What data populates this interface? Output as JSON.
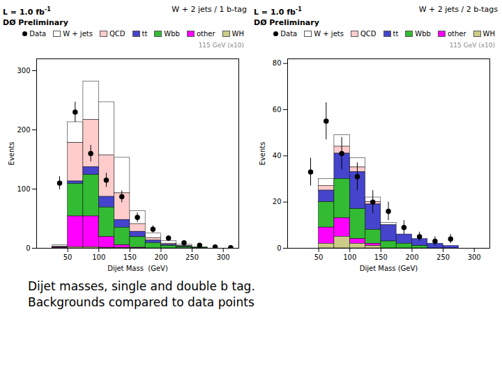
{
  "chart_data": [
    {
      "type": "bar",
      "stacked": true,
      "title": "W + 2 jets / 1 b-tag",
      "annotations": [
        "L = 1.0 fb",
        "-1",
        "DØ Preliminary",
        "115 GeV (x10)"
      ],
      "xlabel": "Dijet Mass  (GeV)",
      "ylabel": "Events",
      "xlim": [
        0,
        325
      ],
      "ylim": [
        0,
        320
      ],
      "xticks": [
        50,
        100,
        150,
        200,
        250,
        300
      ],
      "yticks": [
        0,
        100,
        200,
        300
      ],
      "bins": [
        25,
        50,
        75,
        100,
        125,
        150,
        175,
        200,
        225,
        250,
        275,
        300,
        325
      ],
      "legend": "upper right",
      "series": [
        {
          "name": "Data",
          "type": "scatter",
          "color": "black",
          "marker": "o",
          "x": [
            37,
            62,
            87,
            112,
            137,
            162,
            187,
            212,
            237,
            262,
            287,
            312
          ],
          "values": [
            110,
            230,
            160,
            115,
            87,
            52,
            32,
            17,
            9,
            5,
            2,
            1
          ],
          "errors": [
            11,
            17,
            14,
            12,
            10,
            8,
            6,
            4,
            3,
            2,
            2,
            1
          ]
        },
        {
          "name": "W + jets",
          "color": "#ffffff",
          "values": [
            2,
            35,
            65,
            90,
            60,
            22,
            8,
            4,
            2,
            1,
            0,
            0
          ]
        },
        {
          "name": "QCD",
          "color": "#ffcccc",
          "values": [
            1,
            65,
            80,
            70,
            45,
            13,
            4,
            2,
            1,
            0,
            0,
            0
          ]
        },
        {
          "name": "tt",
          "color": "#4444cc",
          "values": [
            0,
            4,
            13,
            18,
            13,
            9,
            4,
            2,
            1,
            0,
            0,
            0
          ]
        },
        {
          "name": "Wbb",
          "color": "#33bb33",
          "values": [
            1,
            55,
            70,
            50,
            30,
            18,
            9,
            4,
            2,
            1,
            0,
            0
          ]
        },
        {
          "name": "other",
          "color": "#ff00ff",
          "values": [
            1,
            52,
            52,
            18,
            4,
            1,
            0,
            0,
            0,
            0,
            0,
            0
          ]
        },
        {
          "name": "WH",
          "color": "#cccc88",
          "values": [
            0,
            2,
            2,
            1,
            1,
            0,
            0,
            0,
            0,
            0,
            0,
            0
          ]
        }
      ]
    },
    {
      "type": "bar",
      "stacked": true,
      "title": "W + 2 jets /  2 b-tags",
      "annotations": [
        "L = 1.0 fb",
        "-1",
        "DØ Preliminary",
        "115 GeV (x10)"
      ],
      "xlabel": "Dijet Mass (GeV)",
      "ylabel": "Events",
      "xlim": [
        0,
        325
      ],
      "ylim": [
        0,
        82
      ],
      "xticks": [
        50,
        100,
        150,
        200,
        250,
        300
      ],
      "yticks": [
        0,
        20,
        40,
        60,
        80
      ],
      "bins": [
        25,
        50,
        75,
        100,
        125,
        150,
        175,
        200,
        225,
        250,
        275,
        300,
        325
      ],
      "legend": "upper right",
      "series": [
        {
          "name": "Data",
          "type": "scatter",
          "color": "black",
          "marker": "o",
          "x": [
            37,
            62,
            87,
            112,
            137,
            162,
            187,
            212,
            237,
            262
          ],
          "values": [
            33,
            55,
            41,
            31,
            20,
            16,
            9,
            5,
            3,
            4
          ],
          "errors": [
            6,
            8,
            7,
            6,
            5,
            4,
            3,
            2,
            2,
            2
          ]
        },
        {
          "name": "W + jets",
          "color": "#ffffff",
          "values": [
            0,
            3,
            5,
            4,
            2,
            1,
            0,
            0,
            0,
            0,
            0,
            0
          ]
        },
        {
          "name": "QCD",
          "color": "#ffcccc",
          "values": [
            0,
            2,
            3,
            2,
            1,
            0,
            0,
            0,
            0,
            0,
            0,
            0
          ]
        },
        {
          "name": "tt",
          "color": "#4444cc",
          "values": [
            0,
            5,
            11,
            16,
            11,
            7,
            4,
            3,
            2,
            1,
            0,
            0
          ]
        },
        {
          "name": "Wbb",
          "color": "#33bb33",
          "values": [
            0,
            11,
            17,
            13,
            6,
            3,
            2,
            1,
            0,
            0,
            0,
            0
          ]
        },
        {
          "name": "other",
          "color": "#ff00ff",
          "values": [
            0,
            7,
            8,
            2,
            1,
            0,
            0,
            0,
            0,
            0,
            0,
            0
          ]
        },
        {
          "name": "WH",
          "color": "#cccc88",
          "values": [
            0,
            2,
            5,
            2,
            1,
            0,
            0,
            0,
            0,
            0,
            0,
            0
          ]
        }
      ]
    }
  ],
  "caption": [
    "Dijet masses, single and double b tag.",
    "Backgrounds compared to data points"
  ]
}
